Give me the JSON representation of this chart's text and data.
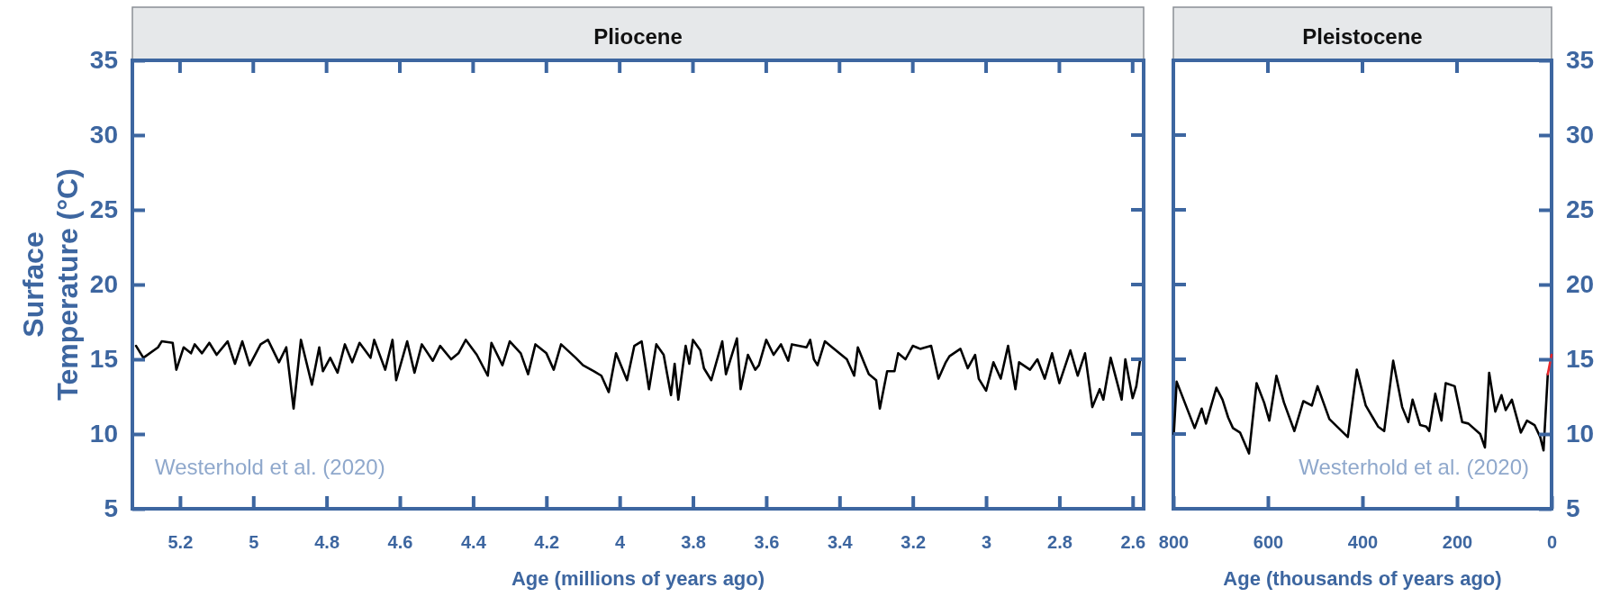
{
  "chart_data": [
    {
      "type": "line",
      "title": "Pliocene",
      "xlabel": "Age (millions of years ago)",
      "ylabel": "Surface Temperature (°C)",
      "xlim": [
        5.33,
        2.57
      ],
      "xticks": [
        5.2,
        5,
        4.8,
        4.6,
        4.4,
        4.2,
        4,
        3.8,
        3.6,
        3.4,
        3.2,
        3,
        2.8,
        2.6
      ],
      "ylim": [
        5,
        35
      ],
      "yticks": [
        5,
        10,
        15,
        20,
        25,
        30,
        35
      ],
      "grid": false,
      "annotations": [
        "Westerhold et al. (2020)"
      ],
      "series": [
        {
          "color": "#000000",
          "x": [
            5.32,
            5.3,
            5.26,
            5.25,
            5.22,
            5.21,
            5.19,
            5.17,
            5.16,
            5.14,
            5.12,
            5.1,
            5.07,
            5.05,
            5.03,
            5.01,
            4.98,
            4.96,
            4.93,
            4.91,
            4.89,
            4.87,
            4.84,
            4.82,
            4.81,
            4.79,
            4.77,
            4.75,
            4.73,
            4.71,
            4.68,
            4.67,
            4.64,
            4.62,
            4.61,
            4.58,
            4.56,
            4.54,
            4.51,
            4.49,
            4.46,
            4.44,
            4.42,
            4.39,
            4.36,
            4.35,
            4.32,
            4.3,
            4.27,
            4.25,
            4.23,
            4.2,
            4.18,
            4.16,
            4.12,
            4.1,
            4.07,
            4.05,
            4.03,
            4.01,
            3.98,
            3.96,
            3.94,
            3.92,
            3.9,
            3.88,
            3.86,
            3.85,
            3.84,
            3.82,
            3.81,
            3.8,
            3.78,
            3.77,
            3.75,
            3.72,
            3.71,
            3.68,
            3.67,
            3.65,
            3.63,
            3.62,
            3.6,
            3.58,
            3.56,
            3.54,
            3.53,
            3.49,
            3.48,
            3.47,
            3.46,
            3.44,
            3.42,
            3.38,
            3.36,
            3.35,
            3.33,
            3.32,
            3.3,
            3.29,
            3.27,
            3.25,
            3.24,
            3.22,
            3.2,
            3.18,
            3.15,
            3.13,
            3.11,
            3.1,
            3.07,
            3.05,
            3.03,
            3.02,
            3.0,
            2.98,
            2.96,
            2.94,
            2.92,
            2.91,
            2.88,
            2.86,
            2.84,
            2.82,
            2.8,
            2.77,
            2.75,
            2.73,
            2.71,
            2.69,
            2.68,
            2.66,
            2.63,
            2.62,
            2.6,
            2.59,
            2.58
          ],
          "values": [
            15.9,
            15.1,
            15.8,
            16.2,
            16.1,
            14.3,
            15.8,
            15.4,
            16.0,
            15.4,
            16.1,
            15.3,
            16.2,
            14.7,
            16.2,
            14.6,
            16.0,
            16.3,
            14.8,
            15.8,
            11.7,
            16.3,
            13.3,
            15.8,
            14.2,
            15.1,
            14.1,
            16.0,
            14.8,
            16.1,
            15.1,
            16.3,
            14.3,
            16.3,
            13.6,
            16.2,
            14.1,
            16.0,
            14.9,
            15.9,
            15.0,
            15.4,
            16.3,
            15.3,
            13.9,
            16.1,
            14.6,
            16.2,
            15.4,
            14.0,
            16.0,
            15.4,
            14.3,
            16.0,
            15.1,
            14.6,
            14.2,
            13.9,
            12.8,
            15.4,
            13.6,
            15.9,
            16.2,
            13.0,
            16.0,
            15.3,
            12.6,
            14.7,
            12.3,
            15.9,
            14.7,
            16.3,
            15.6,
            14.4,
            13.6,
            16.2,
            14.0,
            16.4,
            13.0,
            15.3,
            14.3,
            14.6,
            16.3,
            15.3,
            16.0,
            14.9,
            16.0,
            15.8,
            16.3,
            15.0,
            14.6,
            16.2,
            15.8,
            15.0,
            13.9,
            15.8,
            14.6,
            14.0,
            13.6,
            11.7,
            14.2,
            14.2,
            15.4,
            15.0,
            15.9,
            15.7,
            15.9,
            13.7,
            14.8,
            15.2,
            15.7,
            14.4,
            15.3,
            13.7,
            12.9,
            14.8,
            13.7,
            15.9,
            13.0,
            14.8,
            14.3,
            15.0,
            13.7,
            15.4,
            13.4,
            15.6,
            13.9,
            15.4,
            11.8,
            13.0,
            12.3,
            15.1,
            12.3,
            15.0,
            12.4,
            13.2,
            14.9
          ]
        }
      ]
    },
    {
      "type": "line",
      "title": "Pleistocene",
      "xlabel": "Age (thousands of years ago)",
      "xlim": [
        800,
        0
      ],
      "xticks": [
        800,
        600,
        400,
        200,
        0
      ],
      "ylim": [
        5,
        35
      ],
      "yticks": [
        5,
        10,
        15,
        20,
        25,
        30,
        35
      ],
      "grid": false,
      "annotations": [
        "Westerhold et al. (2020)"
      ],
      "series": [
        {
          "color": "#000000",
          "x": [
            799,
            793,
            755,
            740,
            731,
            709,
            696,
            684,
            674,
            659,
            640,
            624,
            608,
            597,
            582,
            566,
            544,
            525,
            507,
            495,
            470,
            454,
            431,
            412,
            393,
            367,
            354,
            335,
            316,
            303,
            294,
            278,
            265,
            259,
            246,
            233,
            224,
            205,
            189,
            176,
            151,
            141,
            132,
            119,
            106,
            97,
            84,
            65,
            52,
            36,
            24,
            17,
            8
          ],
          "values": [
            10.0,
            13.5,
            10.4,
            11.7,
            10.7,
            13.1,
            12.3,
            11.1,
            10.4,
            10.1,
            8.7,
            13.4,
            12.1,
            10.9,
            13.9,
            12.1,
            10.2,
            12.2,
            11.9,
            13.2,
            11.0,
            10.5,
            9.8,
            14.3,
            11.9,
            10.5,
            10.2,
            14.9,
            11.8,
            10.8,
            12.3,
            10.6,
            10.5,
            10.2,
            12.7,
            10.9,
            13.4,
            13.2,
            10.8,
            10.7,
            10.0,
            9.1,
            14.1,
            11.5,
            12.6,
            11.6,
            12.3,
            10.1,
            10.9,
            10.6,
            9.8,
            8.9,
            14.0
          ]
        },
        {
          "color": "#e8262a",
          "x": [
            8,
            0
          ],
          "values": [
            14.0,
            15.3
          ]
        }
      ]
    }
  ]
}
